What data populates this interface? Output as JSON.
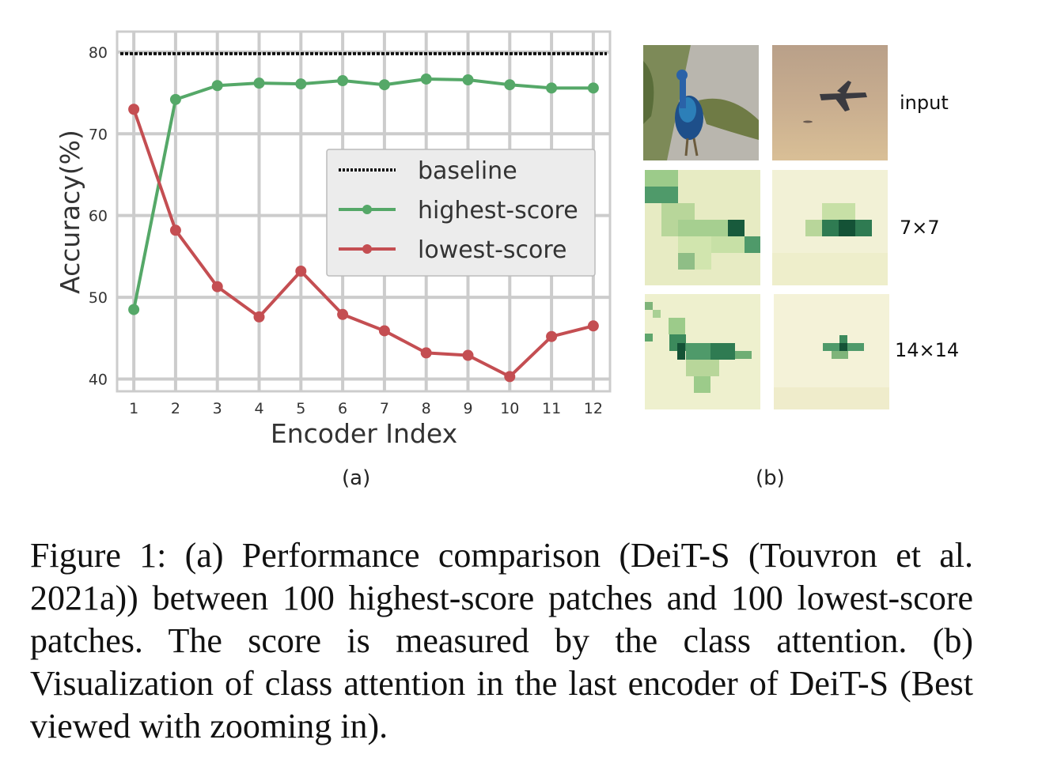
{
  "figure": {
    "panel_a_label": "(a)",
    "panel_b_label": "(b)",
    "row_labels": [
      "input",
      "7×7",
      "14×14"
    ],
    "thumbnails": [
      {
        "row": "input",
        "subject": "peacock"
      },
      {
        "row": "input",
        "subject": "airplane"
      },
      {
        "row": "7×7",
        "subject": "peacock attention"
      },
      {
        "row": "7×7",
        "subject": "airplane attention"
      },
      {
        "row": "14×14",
        "subject": "peacock attention"
      },
      {
        "row": "14×14",
        "subject": "airplane attention"
      }
    ],
    "caption": "Figure 1:  (a) Performance comparison (DeiT-S (Touvron et al. 2021a)) between 100 highest-score patches and 100 lowest-score patches. The score is measured by the class attention. (b) Visualization of class attention in the last encoder of DeiT-S (Best viewed with zooming in)."
  },
  "chart_data": {
    "type": "line",
    "x": [
      1,
      2,
      3,
      4,
      5,
      6,
      7,
      8,
      9,
      10,
      11,
      12
    ],
    "xlabel": "Encoder Index",
    "ylabel": "Accuracy(%)",
    "xticks": [
      "1",
      "2",
      "3",
      "4",
      "5",
      "6",
      "7",
      "8",
      "9",
      "10",
      "11",
      "12"
    ],
    "yticks": [
      "40",
      "50",
      "60",
      "70",
      "80"
    ],
    "ylim": [
      38.5,
      82.5
    ],
    "grid": true,
    "legend_position": "right",
    "series": [
      {
        "name": "baseline",
        "style": "dotted",
        "color": "#111111",
        "values": [
          79.8,
          79.8,
          79.8,
          79.8,
          79.8,
          79.8,
          79.8,
          79.8,
          79.8,
          79.8,
          79.8,
          79.8
        ]
      },
      {
        "name": "highest-score",
        "style": "solid-markers",
        "color": "#55a868",
        "values": [
          48.5,
          74.2,
          75.9,
          76.2,
          76.1,
          76.5,
          76.0,
          76.7,
          76.6,
          76.0,
          75.6,
          75.6
        ]
      },
      {
        "name": "lowest-score",
        "style": "solid-markers",
        "color": "#c44e52",
        "values": [
          73.0,
          58.2,
          51.3,
          47.6,
          53.2,
          47.9,
          45.9,
          43.2,
          42.9,
          40.3,
          45.2,
          46.5
        ]
      }
    ]
  }
}
